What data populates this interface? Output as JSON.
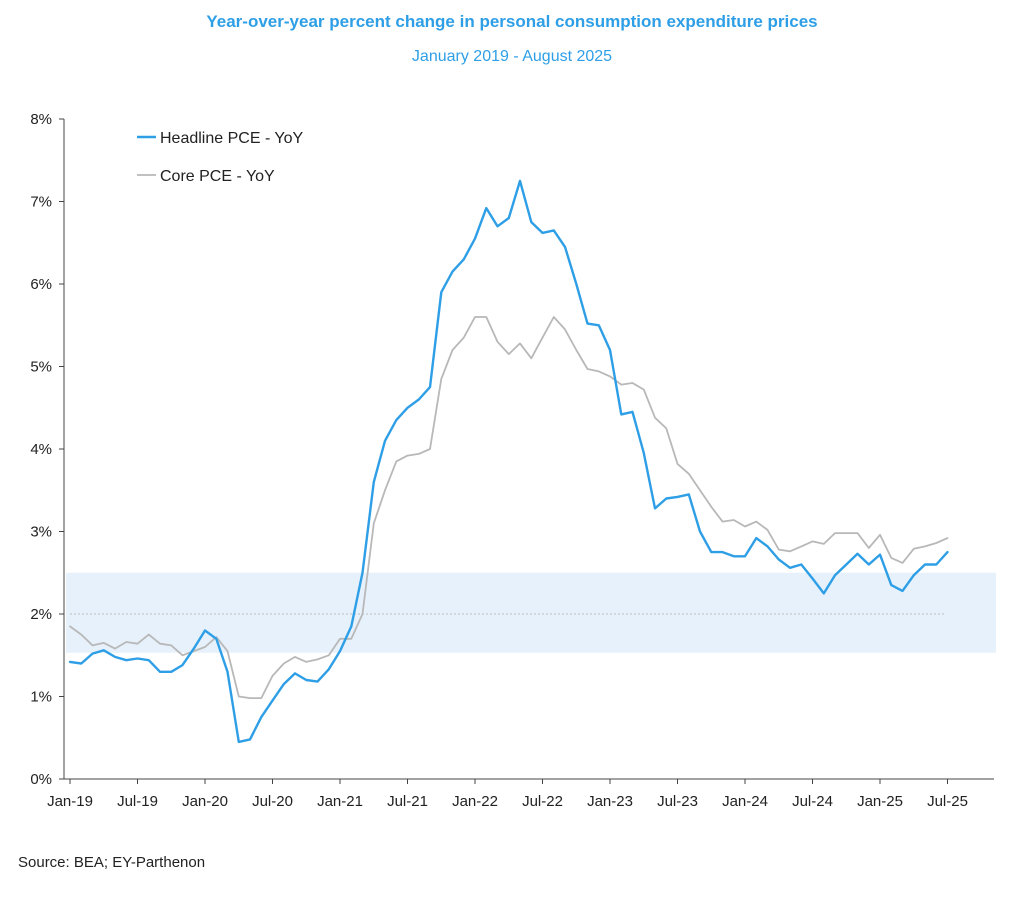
{
  "chart_data": {
    "type": "line",
    "title": "Year-over-year percent change in personal consumption expenditure prices",
    "subtitle": "January 2019 - August 2025",
    "source": "Source: BEA; EY-Parthenon",
    "x_start": "Jan-19",
    "x_end": "Aug-25",
    "x_tick_labels": [
      "Jan-19",
      "Jul-19",
      "Jan-20",
      "Jul-20",
      "Jan-21",
      "Jul-21",
      "Jan-22",
      "Jul-22",
      "Jan-23",
      "Jul-23",
      "Jan-24",
      "Jul-24",
      "Jan-25",
      "Jul-25"
    ],
    "ylim": [
      0,
      8
    ],
    "y_tick_labels": [
      "0%",
      "1%",
      "2%",
      "3%",
      "4%",
      "5%",
      "6%",
      "7%",
      "8%"
    ],
    "band": {
      "low": 1.53,
      "high": 2.5,
      "color": "#e6f1fb"
    },
    "reference_line": {
      "value": 2.0,
      "style": "dotted",
      "color": "#bbbbbb"
    },
    "legend_position": "top-left",
    "grid": false,
    "series": [
      {
        "name": "Headline PCE - YoY",
        "color": "#2e9fe6",
        "values": [
          1.42,
          1.4,
          1.52,
          1.56,
          1.48,
          1.44,
          1.46,
          1.44,
          1.3,
          1.3,
          1.38,
          1.58,
          1.8,
          1.7,
          1.3,
          0.45,
          0.48,
          0.75,
          0.95,
          1.15,
          1.28,
          1.2,
          1.18,
          1.33,
          1.55,
          1.85,
          2.5,
          3.6,
          4.1,
          4.35,
          4.5,
          4.6,
          4.75,
          5.9,
          6.15,
          6.3,
          6.55,
          6.92,
          6.7,
          6.8,
          7.25,
          6.75,
          6.62,
          6.65,
          6.45,
          6.0,
          5.52,
          5.5,
          5.2,
          4.42,
          4.45,
          3.95,
          3.28,
          3.4,
          3.42,
          3.45,
          3.0,
          2.75,
          2.75,
          2.7,
          2.7,
          2.92,
          2.82,
          2.66,
          2.56,
          2.6,
          2.43,
          2.25,
          2.47,
          2.6,
          2.73,
          2.6,
          2.72,
          2.35,
          2.28,
          2.47,
          2.6,
          2.6,
          2.75
        ]
      },
      {
        "name": "Core PCE - YoY",
        "color": "#b8b8b8",
        "values": [
          1.85,
          1.75,
          1.62,
          1.65,
          1.58,
          1.66,
          1.64,
          1.75,
          1.64,
          1.62,
          1.5,
          1.55,
          1.6,
          1.72,
          1.55,
          1.0,
          0.98,
          0.98,
          1.25,
          1.4,
          1.48,
          1.42,
          1.45,
          1.5,
          1.7,
          1.7,
          2.0,
          3.1,
          3.5,
          3.85,
          3.92,
          3.94,
          4.0,
          4.85,
          5.2,
          5.35,
          5.6,
          5.6,
          5.3,
          5.15,
          5.28,
          5.1,
          5.35,
          5.6,
          5.45,
          5.2,
          4.97,
          4.94,
          4.88,
          4.78,
          4.8,
          4.72,
          4.38,
          4.25,
          3.82,
          3.7,
          3.5,
          3.3,
          3.12,
          3.14,
          3.06,
          3.12,
          3.02,
          2.78,
          2.76,
          2.82,
          2.88,
          2.85,
          2.98,
          2.98,
          2.98,
          2.8,
          2.96,
          2.68,
          2.62,
          2.79,
          2.82,
          2.86,
          2.92
        ]
      }
    ]
  }
}
